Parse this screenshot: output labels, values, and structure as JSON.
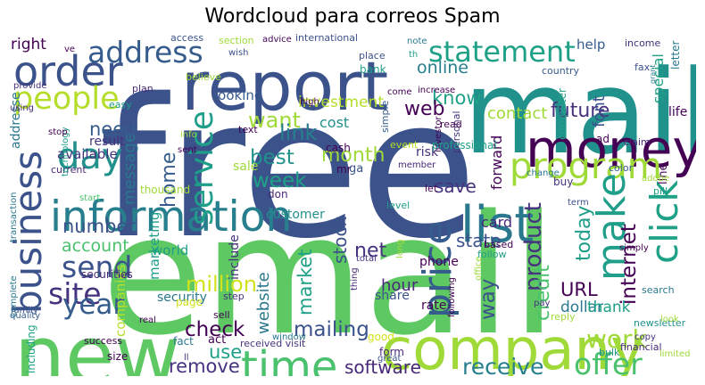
{
  "title": "Wordcloud para correos Spam",
  "palette": [
    "#440154",
    "#46327e",
    "#365c8d",
    "#277f8e",
    "#1fa187",
    "#4ac16d",
    "#a0da39",
    "#d2e21b"
  ],
  "words": [
    {
      "text": "free",
      "color": "#3b528b"
    },
    {
      "text": "email",
      "color": "#5ec962"
    },
    {
      "text": "mail",
      "color": "#21918c"
    },
    {
      "text": "company",
      "color": "#a0da39"
    },
    {
      "text": "report",
      "color": "#3b528b"
    },
    {
      "text": "new",
      "color": "#5ec962"
    },
    {
      "text": "money",
      "color": "#440154"
    },
    {
      "text": "information",
      "color": "#277f8e"
    },
    {
      "text": "list",
      "color": "#2a788e"
    },
    {
      "text": "business",
      "color": "#3b528b"
    },
    {
      "text": "order",
      "color": "#3b528b"
    },
    {
      "text": "time",
      "color": "#4ac16d"
    },
    {
      "text": "address",
      "color": "#365c8d"
    },
    {
      "text": "program",
      "color": "#a0da39"
    },
    {
      "text": "statement",
      "color": "#1fa187"
    },
    {
      "text": "people",
      "color": "#b5de2b"
    },
    {
      "text": "make",
      "color": "#1f9e89"
    },
    {
      "text": "click",
      "color": "#1fa187"
    },
    {
      "text": "price",
      "color": "#365c8d"
    },
    {
      "text": "service",
      "color": "#1f9e89"
    },
    {
      "text": "day",
      "color": "#21918c"
    },
    {
      "text": "send",
      "color": "#3b528b"
    },
    {
      "text": "site",
      "color": "#46327e"
    },
    {
      "text": "year",
      "color": "#365c8d"
    },
    {
      "text": "work",
      "color": "#a0da39"
    },
    {
      "text": "offer",
      "color": "#4ac16d"
    },
    {
      "text": "receive",
      "color": "#277f8e"
    },
    {
      "text": "software",
      "color": "#482878"
    },
    {
      "text": "mailing",
      "color": "#3b528b"
    },
    {
      "text": "check",
      "color": "#440154"
    },
    {
      "text": "remove",
      "color": "#46327e"
    },
    {
      "text": "use",
      "color": "#1fa187"
    },
    {
      "text": "million",
      "color": "#d2e21b"
    },
    {
      "text": "account",
      "color": "#4ac16d"
    },
    {
      "text": "number",
      "color": "#3b528b"
    },
    {
      "text": "message",
      "color": "#2a788e"
    },
    {
      "text": "need",
      "color": "#365c8d"
    },
    {
      "text": "want",
      "color": "#a0da39"
    },
    {
      "text": "link",
      "color": "#277f8e"
    },
    {
      "text": "best",
      "color": "#21918c"
    },
    {
      "text": "week",
      "color": "#1fa187"
    },
    {
      "text": "home",
      "color": "#365c8d"
    },
    {
      "text": "marketing",
      "color": "#1f9e89"
    },
    {
      "text": "month",
      "color": "#a0da39"
    },
    {
      "text": "save",
      "color": "#46327e"
    },
    {
      "text": "stock",
      "color": "#3b528b"
    },
    {
      "text": "market",
      "color": "#1fa187"
    },
    {
      "text": "website",
      "color": "#2a788e"
    },
    {
      "text": "net",
      "color": "#46327e"
    },
    {
      "text": "hour",
      "color": "#482878"
    },
    {
      "text": "state",
      "color": "#3b528b"
    },
    {
      "text": "card",
      "color": "#482878"
    },
    {
      "text": "product",
      "color": "#46327e"
    },
    {
      "text": "credit",
      "color": "#4ac16d"
    },
    {
      "text": "way",
      "color": "#3b528b"
    },
    {
      "text": "URL",
      "color": "#440154"
    },
    {
      "text": "dollar",
      "color": "#2a788e"
    },
    {
      "text": "today",
      "color": "#1f9e89"
    },
    {
      "text": "internet",
      "color": "#440154"
    },
    {
      "text": "thank",
      "color": "#1fa187"
    },
    {
      "text": "contact",
      "color": "#a0da39"
    },
    {
      "text": "future",
      "color": "#46327e"
    },
    {
      "text": "font",
      "color": "#3b528b"
    },
    {
      "text": "know",
      "color": "#1fa187"
    },
    {
      "text": "web",
      "color": "#440154"
    },
    {
      "text": "online",
      "color": "#277f8e"
    },
    {
      "text": "investment",
      "color": "#b5de2b"
    },
    {
      "text": "cost",
      "color": "#21918c"
    },
    {
      "text": "looking",
      "color": "#365c8d"
    },
    {
      "text": "forward",
      "color": "#440154"
    },
    {
      "text": "help",
      "color": "#365c8d"
    },
    {
      "text": "special",
      "color": "#1fa187"
    },
    {
      "text": "life",
      "color": "#440154"
    },
    {
      "text": "right",
      "color": "#440154"
    },
    {
      "text": "customer",
      "color": "#21918c"
    },
    {
      "text": "world",
      "color": "#1f9e89"
    },
    {
      "text": "include",
      "color": "#46327e"
    },
    {
      "text": "security",
      "color": "#2a788e"
    },
    {
      "text": "result",
      "color": "#46327e"
    },
    {
      "text": "available",
      "color": "#46327e"
    },
    {
      "text": "thousand",
      "color": "#a0da39"
    },
    {
      "text": "companies",
      "color": "#b5de2b"
    },
    {
      "text": "securities",
      "color": "#482878"
    },
    {
      "text": "addresse",
      "color": "#2a788e"
    },
    {
      "text": "sale",
      "color": "#a0da39"
    },
    {
      "text": "risk",
      "color": "#46327e"
    },
    {
      "text": "phone",
      "color": "#440154"
    },
    {
      "text": "rate",
      "color": "#440154"
    },
    {
      "text": "share",
      "color": "#3b528b"
    },
    {
      "text": "received visit",
      "color": "#46327e"
    },
    {
      "text": "act",
      "color": "#440154"
    },
    {
      "text": "fact",
      "color": "#2a788e"
    },
    {
      "text": "size",
      "color": "#440154"
    },
    {
      "text": "sell",
      "color": "#440154"
    },
    {
      "text": "form",
      "color": "#482878"
    },
    {
      "text": "great",
      "color": "#3b528b"
    },
    {
      "text": "financial",
      "color": "#482878"
    },
    {
      "text": "limited",
      "color": "#a0da39"
    },
    {
      "text": "bulk",
      "color": "#21918c"
    },
    {
      "text": "newsletter",
      "color": "#21918c"
    },
    {
      "text": "reply",
      "color": "#a0da39"
    },
    {
      "text": "search",
      "color": "#2a788e"
    },
    {
      "text": "simply",
      "color": "#440154"
    },
    {
      "text": "based",
      "color": "#440154"
    },
    {
      "text": "follow",
      "color": "#1f9e89"
    },
    {
      "text": "office",
      "color": "#a0da39"
    },
    {
      "text": "income",
      "color": "#46327e"
    },
    {
      "text": "letter",
      "color": "#2a788e"
    },
    {
      "text": "fax",
      "color": "#3b528b"
    },
    {
      "text": "grant",
      "color": "#2a788e"
    },
    {
      "text": "country",
      "color": "#365c8d"
    },
    {
      "text": "computer",
      "color": "#1fa187"
    },
    {
      "text": "personal",
      "color": "#46327e"
    },
    {
      "text": "investor",
      "color": "#440154"
    },
    {
      "text": "read",
      "color": "#440154"
    },
    {
      "text": "text",
      "color": "#440154"
    },
    {
      "text": "cash",
      "color": "#440154"
    },
    {
      "text": "claim",
      "color": "#482878"
    },
    {
      "text": "pill",
      "color": "#1fa187"
    },
    {
      "text": "color",
      "color": "#365c8d"
    },
    {
      "text": "line",
      "color": "#440154"
    },
    {
      "text": "ad",
      "color": "#440154"
    },
    {
      "text": "professional",
      "color": "#1fa187"
    },
    {
      "text": "event",
      "color": "#b5de2b"
    },
    {
      "text": "change",
      "color": "#2a788e"
    },
    {
      "text": "buy",
      "color": "#46327e"
    },
    {
      "text": "term",
      "color": "#3b528b"
    },
    {
      "text": "level",
      "color": "#1f9e89"
    },
    {
      "text": "let",
      "color": "#440154"
    },
    {
      "text": "simple",
      "color": "#365c8d"
    },
    {
      "text": "member",
      "color": "#482878"
    },
    {
      "text": "mr",
      "color": "#440154"
    },
    {
      "text": "ga",
      "color": "#3b528b"
    },
    {
      "text": "don",
      "color": "#482878"
    },
    {
      "text": "good",
      "color": "#d2e21b"
    },
    {
      "text": "window",
      "color": "#2a788e"
    },
    {
      "text": "including",
      "color": "#1fa187"
    },
    {
      "text": "success",
      "color": "#440154"
    },
    {
      "text": "family",
      "color": "#3b528b"
    },
    {
      "text": "quality",
      "color": "#365c8d"
    },
    {
      "text": "complete",
      "color": "#2a788e"
    },
    {
      "text": "start",
      "color": "#4ac16d"
    },
    {
      "text": "current",
      "color": "#482878"
    },
    {
      "text": "technology",
      "color": "#1f9e89"
    },
    {
      "text": "transaction",
      "color": "#2a788e"
    },
    {
      "text": "stop",
      "color": "#440154"
    },
    {
      "text": "using",
      "color": "#482878"
    },
    {
      "text": "easy",
      "color": "#1f9e89"
    },
    {
      "text": "provide",
      "color": "#46327e"
    },
    {
      "text": "plan",
      "color": "#482878"
    },
    {
      "text": "access",
      "color": "#3b528b"
    },
    {
      "text": "ve",
      "color": "#440154"
    },
    {
      "text": "section",
      "color": "#a0da39"
    },
    {
      "text": "advice",
      "color": "#440154"
    },
    {
      "text": "international",
      "color": "#3b528b"
    },
    {
      "text": "note",
      "color": "#2a788e"
    },
    {
      "text": "wish",
      "color": "#3b528b"
    },
    {
      "text": "place",
      "color": "#3b528b"
    },
    {
      "text": "th",
      "color": "#1fa187"
    },
    {
      "text": "bank",
      "color": "#1fa187"
    },
    {
      "text": "believe",
      "color": "#a0da39"
    },
    {
      "text": "come",
      "color": "#440154"
    },
    {
      "text": "increase",
      "color": "#440154"
    },
    {
      "text": "high",
      "color": "#440154"
    },
    {
      "text": "info",
      "color": "#a0da39"
    },
    {
      "text": "sent",
      "color": "#440154"
    },
    {
      "text": "page",
      "color": "#d2e21b"
    },
    {
      "text": "step",
      "color": "#46327e"
    },
    {
      "text": "real",
      "color": "#440154"
    },
    {
      "text": "ll",
      "color": "#46327e"
    },
    {
      "text": "pay",
      "color": "#46327e"
    },
    {
      "text": "following",
      "color": "#440154"
    },
    {
      "text": "long",
      "color": "#a0da39"
    },
    {
      "text": "total",
      "color": "#46327e"
    },
    {
      "text": "thing",
      "color": "#482878"
    },
    {
      "text": "look",
      "color": "#a0da39"
    },
    {
      "text": "adobe",
      "color": "#a0da39"
    },
    {
      "text": "copy",
      "color": "#46327e"
    }
  ]
}
